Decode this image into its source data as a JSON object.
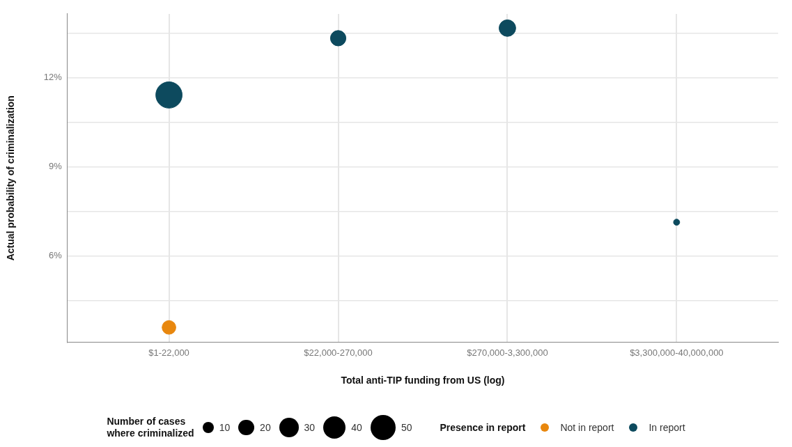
{
  "chart_data": {
    "type": "bubble",
    "xlabel": "Total anti-TIP funding from US (log)",
    "ylabel": "Actual probability of criminalization",
    "categories": [
      "$1-22,000",
      "$22,000-270,000",
      "$270,000-3,300,000",
      "$3,300,000-40,000,000"
    ],
    "series": [
      {
        "name": "Not in report",
        "color": "#e8870e",
        "values": [
          3.6,
          null,
          null,
          null
        ],
        "sizes": [
          15,
          null,
          null,
          null
        ]
      },
      {
        "name": "In report",
        "color": "#0d4a5e",
        "values": [
          11.42,
          13.33,
          13.67,
          7.14
        ],
        "sizes": [
          55,
          19,
          22,
          3
        ]
      }
    ],
    "ylim": [
      3.1,
      14.15
    ],
    "yticks": [
      {
        "value": 4.5,
        "label": null
      },
      {
        "value": 6,
        "label": "6%"
      },
      {
        "value": 7.5,
        "label": null
      },
      {
        "value": 9,
        "label": "9%"
      },
      {
        "value": 10.5,
        "label": null
      },
      {
        "value": 12,
        "label": "12%"
      },
      {
        "value": 13.5,
        "label": null
      }
    ],
    "size_legend": [
      10,
      20,
      30,
      40,
      50
    ],
    "legend_title": "Presence in report",
    "annotations": [
      "Number of cases\nwhere criminalized"
    ],
    "grid": true,
    "legend": "bottom"
  }
}
